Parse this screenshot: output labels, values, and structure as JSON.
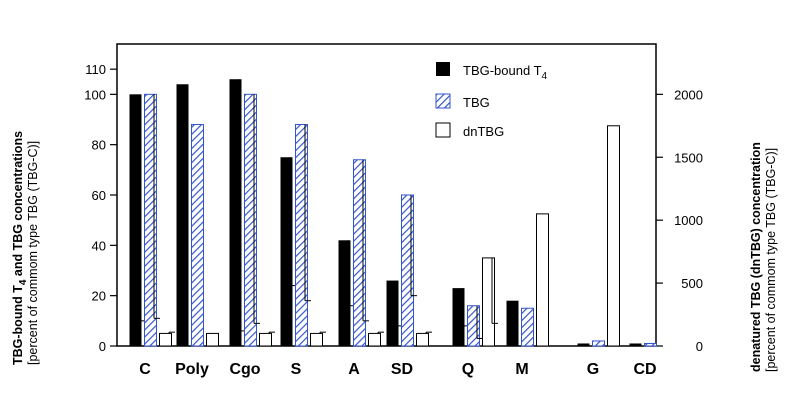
{
  "chart_data": {
    "type": "bar",
    "categories": [
      "C",
      "Poly",
      "Cgo",
      "S",
      "A",
      "SD",
      "Q",
      "M",
      "G",
      "CD"
    ],
    "series": [
      {
        "name": "TBG-bound T4",
        "axis": "left",
        "color": "#000000",
        "values": [
          100,
          104,
          106,
          75,
          42,
          26,
          23,
          18,
          1,
          1
        ],
        "errors": [
          10,
          null,
          6,
          24,
          16,
          8,
          8,
          null,
          null,
          null
        ]
      },
      {
        "name": "TBG",
        "axis": "left",
        "color": "#3355cc",
        "pattern": "diagonal-hatch",
        "values": [
          100,
          88,
          100,
          88,
          74,
          60,
          16,
          15,
          2,
          1
        ],
        "errors": [
          11,
          null,
          9,
          18,
          10,
          20,
          3,
          null,
          null,
          null
        ]
      },
      {
        "name": "dnTBG",
        "axis": "right",
        "color": "#ffffff",
        "values": [
          100,
          100,
          100,
          100,
          100,
          100,
          700,
          1050,
          1750,
          null
        ],
        "errors": [
          110,
          null,
          110,
          110,
          110,
          110,
          180,
          null,
          null,
          null
        ]
      }
    ],
    "left_axis": {
      "label_line1_parts": [
        "TBG-bound T",
        "4",
        " and TBG concentrations"
      ],
      "label_line2": "[percent of commom type TBG (TBG-C)]",
      "ylim": [
        0,
        120
      ],
      "ticks": [
        "0",
        "20",
        "40",
        "60",
        "80",
        "100",
        "110"
      ],
      "tick_values": [
        0,
        20,
        40,
        60,
        80,
        100,
        110
      ]
    },
    "right_axis": {
      "label_line1": "denatured TBG (dnTBG) concentration",
      "label_line2": "[percent of commom type TBG (TBG-C)]",
      "ylim": [
        0,
        2400
      ],
      "ticks": [
        "0",
        "500",
        "1000",
        "1500",
        "2000"
      ],
      "tick_values": [
        0,
        500,
        1000,
        1500,
        2000
      ]
    },
    "legend": {
      "position": "top-right",
      "items": [
        {
          "label": "TBG-bound T",
          "subscript": "4",
          "swatch": "solid-black"
        },
        {
          "label": "TBG",
          "subscript": "",
          "swatch": "blue-hatch"
        },
        {
          "label": "dnTBG",
          "subscript": "",
          "swatch": "white"
        }
      ]
    }
  }
}
